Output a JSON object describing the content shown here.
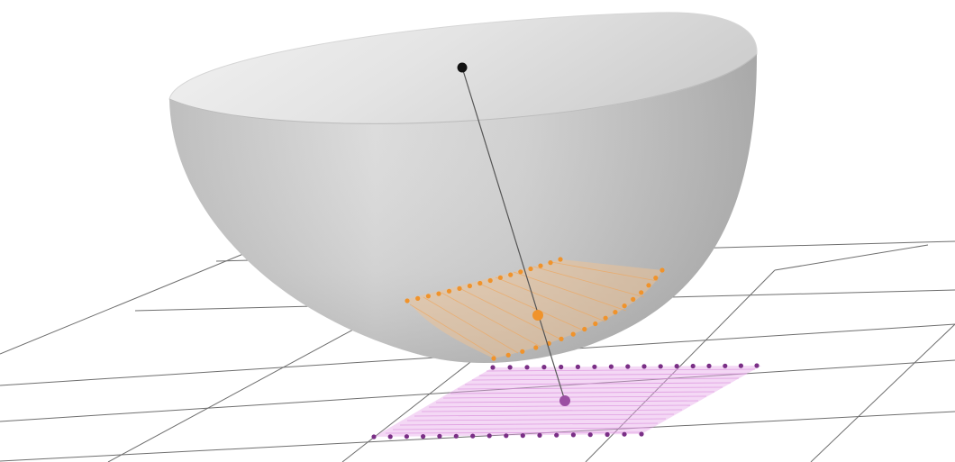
{
  "scene": {
    "description_label": "",
    "colors": {
      "background": "#ffffff",
      "bowl_light": "#f4f4f4",
      "bowl_mid": "#cfcfcf",
      "bowl_dark": "#a9a9a9",
      "rim_inner": "#e6e6e6",
      "grid_line": "#6e6e6e",
      "projection_line": "#555555",
      "center_point": "#111111",
      "curve_points": "#f0932b",
      "curve_fill": "#f6c48f",
      "plane_points": "#7a2f86",
      "plane_fill": "#e6a9e8",
      "foot_point": "#9b4fa3"
    },
    "points": [
      {
        "name": "center-point",
        "color": "center_point"
      },
      {
        "name": "curve-center-point",
        "color": "curve_points"
      },
      {
        "name": "foot-point",
        "color": "foot_point"
      }
    ]
  }
}
